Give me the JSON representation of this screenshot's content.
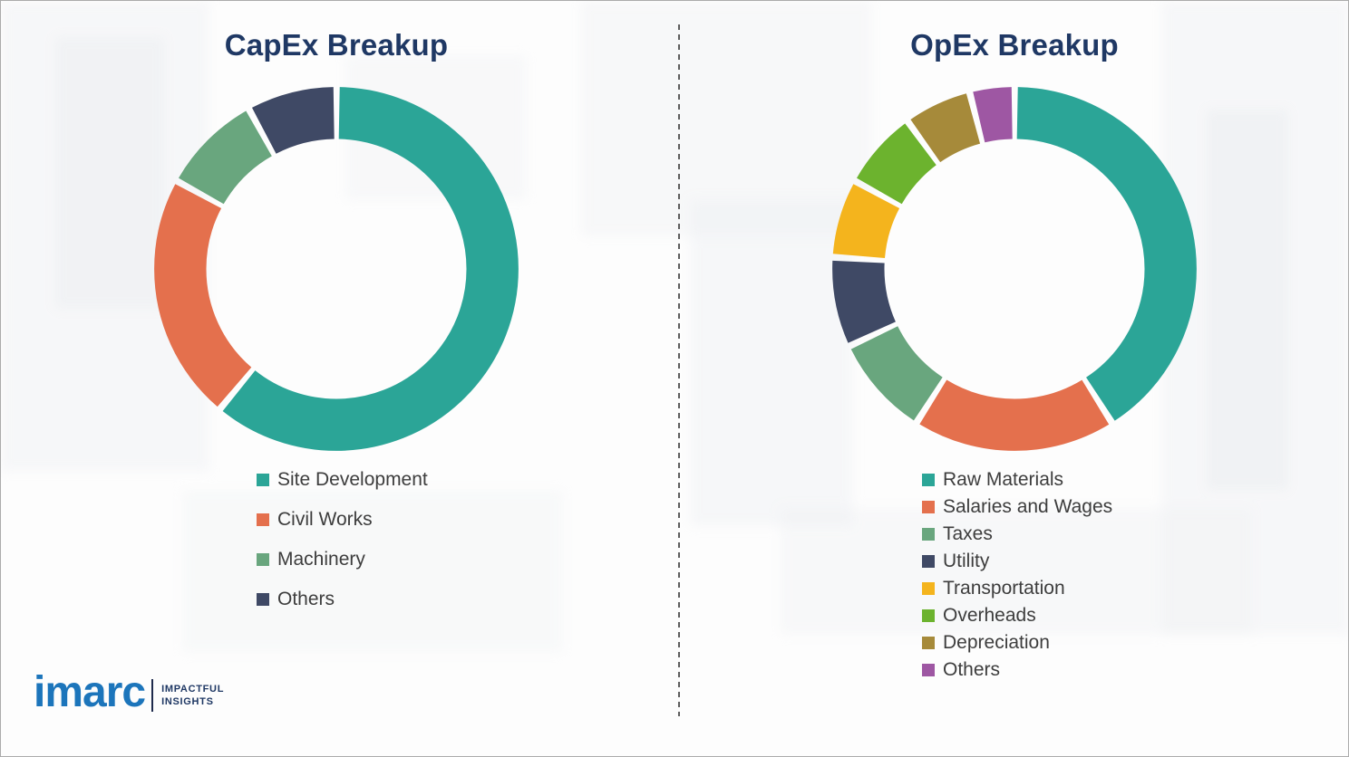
{
  "page": {
    "divider_style": "dashed-vertical"
  },
  "chart_data": [
    {
      "type": "pie",
      "subtype": "donut",
      "title": "CapEx Breakup",
      "labels": [
        "Site Development",
        "Civil Works",
        "Machinery",
        "Others"
      ],
      "values": [
        61,
        22,
        9,
        8
      ],
      "values_note": "percent, estimated from arc angles (no data labels shown)",
      "colors": [
        "#2BA597",
        "#E4704D",
        "#69A67E",
        "#3F4965"
      ],
      "legend_position": "below-left",
      "start_angle_deg": 0,
      "direction": "clockwise"
    },
    {
      "type": "pie",
      "subtype": "donut",
      "title": "OpEx Breakup",
      "labels": [
        "Raw Materials",
        "Salaries and Wages",
        "Taxes",
        "Utility",
        "Transportation",
        "Overheads",
        "Depreciation",
        "Others"
      ],
      "values": [
        41,
        18,
        9,
        8,
        7,
        7,
        6,
        4
      ],
      "values_note": "percent, estimated from arc angles (no data labels shown)",
      "colors": [
        "#2BA597",
        "#E4704D",
        "#69A67E",
        "#3F4965",
        "#F4B41D",
        "#6CB32E",
        "#A68A3A",
        "#9E57A3"
      ],
      "legend_position": "below-left",
      "start_angle_deg": 0,
      "direction": "clockwise"
    }
  ],
  "logo": {
    "brand": "imarc",
    "tagline_line1": "IMPACTFUL",
    "tagline_line2": "INSIGHTS"
  }
}
